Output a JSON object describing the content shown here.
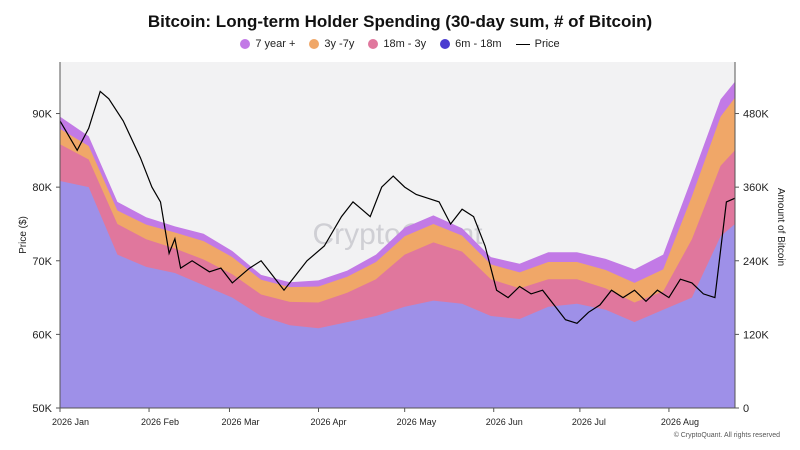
{
  "chart_data": {
    "type": "area",
    "title": "Bitcoin: Long-term Holder Spending (30-day sum, # of Bitcoin)",
    "x_labels": [
      "2026 Jan",
      "2026 Feb",
      "2026 Mar",
      "2026 Apr",
      "2026 May",
      "2026 Jun",
      "2026 Jul",
      "2026 Aug"
    ],
    "x_range": [
      0,
      235
    ],
    "x_label_positions": [
      0,
      31,
      59,
      90,
      120,
      151,
      181,
      212
    ],
    "ylabel_left": "Price ($)",
    "ylabel_right": "Amount of Bitcoin",
    "y_left_ticks": [
      "50K",
      "60K",
      "70K",
      "80K",
      "90K"
    ],
    "y_left_range": [
      50000,
      97000
    ],
    "y_right_ticks": [
      "0",
      "120K",
      "240K",
      "360K",
      "480K"
    ],
    "y_right_range": [
      0,
      564000
    ],
    "stack_order": [
      "6m - 18m",
      "18m - 3y",
      "3y -7y",
      "7 year +"
    ],
    "series": [
      {
        "name": "7 year +",
        "color": "#c27ae6",
        "x": [
          0,
          10,
          20,
          30,
          40,
          50,
          60,
          70,
          80,
          90,
          100,
          110,
          120,
          130,
          140,
          150,
          160,
          170,
          180,
          190,
          200,
          210,
          220,
          230,
          235
        ],
        "values": [
          20000,
          16000,
          14000,
          12000,
          10000,
          12000,
          10000,
          8000,
          8000,
          10000,
          10000,
          12000,
          14000,
          14000,
          12000,
          12000,
          14000,
          16000,
          16000,
          18000,
          22000,
          24000,
          30000,
          28000,
          26000
        ]
      },
      {
        "name": "3y -7y",
        "color": "#f0a768",
        "x": [
          0,
          10,
          20,
          30,
          40,
          50,
          60,
          70,
          80,
          90,
          100,
          110,
          120,
          130,
          140,
          150,
          160,
          170,
          180,
          190,
          200,
          210,
          220,
          230,
          235
        ],
        "values": [
          25000,
          22000,
          22000,
          24000,
          26000,
          30000,
          28000,
          24000,
          24000,
          26000,
          26000,
          28000,
          30000,
          30000,
          26000,
          24000,
          26000,
          28000,
          28000,
          30000,
          32000,
          36000,
          70000,
          80000,
          86000
        ]
      },
      {
        "name": "18m - 3y",
        "color": "#e0779d",
        "x": [
          0,
          10,
          20,
          30,
          40,
          50,
          60,
          70,
          80,
          90,
          100,
          110,
          120,
          130,
          140,
          150,
          160,
          170,
          180,
          190,
          200,
          210,
          220,
          230,
          235
        ],
        "values": [
          60000,
          45000,
          50000,
          45000,
          40000,
          42000,
          38000,
          35000,
          38000,
          42000,
          48000,
          60000,
          85000,
          95000,
          85000,
          60000,
          50000,
          45000,
          40000,
          35000,
          32000,
          30000,
          95000,
          115000,
          120000
        ]
      },
      {
        "name": "6m - 18m",
        "color": "#9e90e8",
        "x": [
          0,
          10,
          20,
          30,
          40,
          50,
          60,
          70,
          80,
          90,
          100,
          110,
          120,
          130,
          140,
          150,
          160,
          170,
          180,
          190,
          200,
          210,
          220,
          230,
          235
        ],
        "values": [
          370000,
          360000,
          250000,
          230000,
          220000,
          200000,
          180000,
          150000,
          135000,
          130000,
          140000,
          150000,
          165000,
          175000,
          170000,
          150000,
          145000,
          165000,
          170000,
          160000,
          140000,
          160000,
          180000,
          280000,
          300000
        ]
      }
    ],
    "price": {
      "name": "Price",
      "color": "#000000",
      "x": [
        0,
        6,
        10,
        14,
        17,
        22,
        28,
        32,
        35,
        38,
        40,
        42,
        46,
        52,
        56,
        60,
        66,
        70,
        74,
        78,
        82,
        86,
        92,
        98,
        102,
        105,
        108,
        112,
        116,
        120,
        124,
        128,
        132,
        136,
        140,
        144,
        148,
        152,
        156,
        160,
        164,
        168,
        172,
        176,
        180,
        184,
        188,
        192,
        196,
        200,
        204,
        208,
        212,
        216,
        220,
        224,
        228,
        232,
        235
      ],
      "values": [
        89000,
        85000,
        88000,
        93000,
        92000,
        89000,
        84000,
        80000,
        78000,
        71000,
        73000,
        69000,
        70000,
        68500,
        69000,
        67000,
        69000,
        70000,
        68000,
        66000,
        68000,
        70000,
        72000,
        76000,
        78000,
        77000,
        76000,
        80000,
        81500,
        80000,
        79000,
        78500,
        78000,
        75000,
        77000,
        76000,
        72000,
        66000,
        65000,
        66500,
        65500,
        66000,
        64000,
        62000,
        61500,
        63000,
        64000,
        66000,
        65000,
        66000,
        64500,
        66000,
        65000,
        67500,
        67000,
        65500,
        65000,
        78000,
        78500
      ]
    },
    "legend_placement": "top-center",
    "grid": false,
    "watermark": "CryptoQuant",
    "footer": "© CryptoQuant. All rights reserved"
  }
}
